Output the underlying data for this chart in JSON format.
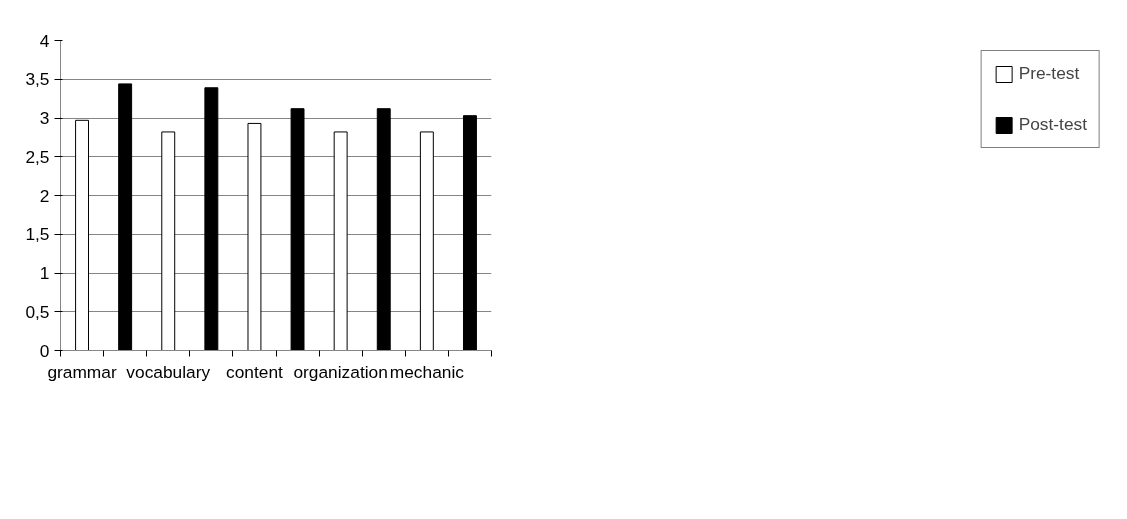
{
  "chart_data": {
    "type": "bar",
    "categories": [
      "grammar",
      null,
      "vocabulary",
      null,
      "content",
      null,
      "organization",
      null,
      "mechanic",
      null
    ],
    "series": [
      {
        "name": "Pre-test",
        "color": "#ffffff",
        "values": [
          2.97,
          null,
          2.82,
          null,
          2.93,
          null,
          2.82,
          null,
          2.82,
          null
        ]
      },
      {
        "name": "Post-test",
        "color": "#000000",
        "values": [
          null,
          3.44,
          null,
          3.39,
          null,
          3.12,
          null,
          3.12,
          null,
          3.03
        ]
      }
    ],
    "ylim": [
      0,
      4
    ],
    "yticks": [
      0,
      {
        "value": 0.5,
        "label": "0,5"
      },
      1,
      {
        "value": 1.5,
        "label": "1,5"
      },
      2,
      {
        "value": 2.5,
        "label": "2,5"
      },
      3,
      {
        "value": 3.5,
        "label": "3,5"
      },
      4
    ],
    "grid": "y",
    "legend": "right"
  }
}
